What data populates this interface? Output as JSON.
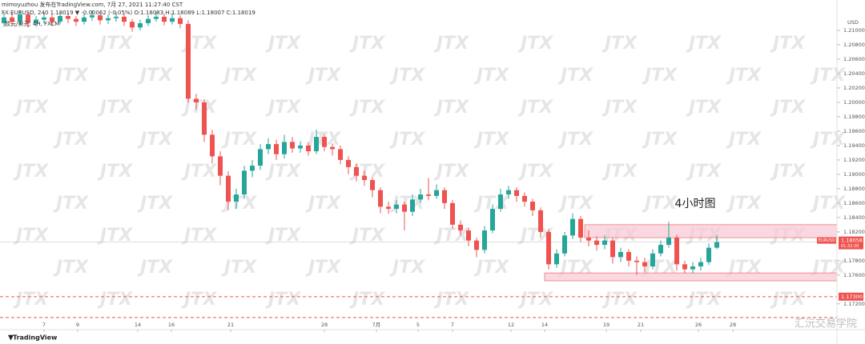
{
  "chart_data": {
    "type": "candlestick",
    "header": [
      "mimoyuzhou 发布在TradingView.com, 7月 27, 2021 11:27:40 CST",
      "FX:EURUSD, 240 1.18019 ▼ -0.00062 (-0.05%) O:1.18083 H:1.18089 L:1.18007 C:1.18019",
      "欧元/美元, 4H, FXCM"
    ],
    "annotation": "4小时图",
    "watermark": "JTX",
    "brand": "TradingView",
    "credit": "汇沅交易学院",
    "y_unit": "USD",
    "up_color": "#26a69a",
    "down_color": "#ef5350",
    "xlim": [
      -0.5,
      104
    ],
    "xticks": [
      {
        "value": 5,
        "label": "7"
      },
      {
        "value": 9.2,
        "label": "9"
      },
      {
        "value": 16.7,
        "label": "14"
      },
      {
        "value": 20.9,
        "label": "16"
      },
      {
        "value": 28.3,
        "label": "21"
      },
      {
        "value": 40,
        "label": "28"
      },
      {
        "value": 46.5,
        "label": "7月"
      },
      {
        "value": 51.7,
        "label": "5"
      },
      {
        "value": 56,
        "label": "7"
      },
      {
        "value": 63.3,
        "label": "12"
      },
      {
        "value": 67.5,
        "label": "14"
      },
      {
        "value": 75.2,
        "label": "19"
      },
      {
        "value": 79.5,
        "label": "21"
      },
      {
        "value": 86.7,
        "label": "26"
      },
      {
        "value": 91,
        "label": "28"
      }
    ],
    "ylim": [
      1.1692,
      1.212
    ],
    "yticks": [
      {
        "value": 1.21,
        "label": "1.21000"
      },
      {
        "value": 1.208,
        "label": "1.20800"
      },
      {
        "value": 1.206,
        "label": "1.20600"
      },
      {
        "value": 1.204,
        "label": "1.20400"
      },
      {
        "value": 1.202,
        "label": "1.20200"
      },
      {
        "value": 1.2,
        "label": "1.20000"
      },
      {
        "value": 1.198,
        "label": "1.19800"
      },
      {
        "value": 1.196,
        "label": "1.19600"
      },
      {
        "value": 1.194,
        "label": "1.19400"
      },
      {
        "value": 1.192,
        "label": "1.19200"
      },
      {
        "value": 1.19,
        "label": "1.19000"
      },
      {
        "value": 1.188,
        "label": "1.18800"
      },
      {
        "value": 1.186,
        "label": "1.18600"
      },
      {
        "value": 1.184,
        "label": "1.18400"
      },
      {
        "value": 1.182,
        "label": "1.18200"
      },
      {
        "value": 1.178,
        "label": "1.17800"
      },
      {
        "value": 1.176,
        "label": "1.17600"
      },
      {
        "value": 1.172,
        "label": "1.17200"
      }
    ],
    "price": {
      "symbol": "EURUSD",
      "value": 1.18058,
      "countdown": "01:32:20"
    },
    "zones": [
      {
        "from": 72.5,
        "to": 104,
        "top": 1.183,
        "bottom": 1.1812,
        "color": "#f8c8d4"
      },
      {
        "from": 67.5,
        "to": 104,
        "top": 1.1763,
        "bottom": 1.1752,
        "color": "#f8c8d4"
      }
    ],
    "hlines": [
      {
        "value": 1.173,
        "label": "1.17300",
        "color": "#ef5350"
      },
      {
        "value": 1.1701,
        "color": "#ef5350"
      }
    ],
    "candles": [
      [
        1.211,
        1.2125,
        1.2105,
        1.2118
      ],
      [
        1.2118,
        1.2124,
        1.2106,
        1.2112
      ],
      [
        1.2112,
        1.2128,
        1.2108,
        1.2122
      ],
      [
        1.2122,
        1.2126,
        1.2104,
        1.211
      ],
      [
        1.211,
        1.212,
        1.2105,
        1.2115
      ],
      [
        1.2115,
        1.2124,
        1.211,
        1.2118
      ],
      [
        1.2118,
        1.2122,
        1.2106,
        1.2112
      ],
      [
        1.2112,
        1.2126,
        1.2108,
        1.212
      ],
      [
        1.212,
        1.2125,
        1.211,
        1.2116
      ],
      [
        1.2116,
        1.212,
        1.2106,
        1.2112
      ],
      [
        1.2112,
        1.2124,
        1.2108,
        1.2118
      ],
      [
        1.2118,
        1.2128,
        1.2113,
        1.2121
      ],
      [
        1.2121,
        1.2125,
        1.2108,
        1.2114
      ],
      [
        1.2114,
        1.2122,
        1.2109,
        1.2117
      ],
      [
        1.2117,
        1.2126,
        1.2112,
        1.2119
      ],
      [
        1.2119,
        1.2123,
        1.2106,
        1.2112
      ],
      [
        1.2112,
        1.2116,
        1.2098,
        1.2104
      ],
      [
        1.2104,
        1.2115,
        1.21,
        1.211
      ],
      [
        1.211,
        1.2121,
        1.2106,
        1.2116
      ],
      [
        1.2116,
        1.2126,
        1.2112,
        1.2119
      ],
      [
        1.2119,
        1.2123,
        1.2107,
        1.2112
      ],
      [
        1.2112,
        1.2124,
        1.2108,
        1.2117
      ],
      [
        1.2117,
        1.2121,
        1.2103,
        1.2109
      ],
      [
        1.2109,
        1.2114,
        1.2,
        1.2005
      ],
      [
        1.2005,
        1.2012,
        1.199,
        1.2
      ],
      [
        1.2,
        1.2004,
        1.1945,
        1.1955
      ],
      [
        1.1955,
        1.1962,
        1.1915,
        1.1925
      ],
      [
        1.1925,
        1.1932,
        1.1885,
        1.1898
      ],
      [
        1.1898,
        1.1904,
        1.185,
        1.1862
      ],
      [
        1.1862,
        1.188,
        1.1852,
        1.1872
      ],
      [
        1.1872,
        1.1912,
        1.1866,
        1.1905
      ],
      [
        1.1905,
        1.192,
        1.1896,
        1.1912
      ],
      [
        1.1912,
        1.1942,
        1.1906,
        1.1935
      ],
      [
        1.1935,
        1.195,
        1.1928,
        1.1942
      ],
      [
        1.1942,
        1.1948,
        1.192,
        1.1928
      ],
      [
        1.1928,
        1.1955,
        1.1922,
        1.1945
      ],
      [
        1.1945,
        1.1952,
        1.193,
        1.1936
      ],
      [
        1.1936,
        1.1946,
        1.193,
        1.194
      ],
      [
        1.194,
        1.1945,
        1.1926,
        1.1932
      ],
      [
        1.1932,
        1.1962,
        1.1928,
        1.1952
      ],
      [
        1.1952,
        1.1956,
        1.1932,
        1.1938
      ],
      [
        1.1938,
        1.1943,
        1.1926,
        1.1935
      ],
      [
        1.1935,
        1.194,
        1.1914,
        1.192
      ],
      [
        1.192,
        1.1925,
        1.19,
        1.191
      ],
      [
        1.191,
        1.1915,
        1.189,
        1.1898
      ],
      [
        1.1898,
        1.1905,
        1.1884,
        1.1892
      ],
      [
        1.1892,
        1.1896,
        1.1868,
        1.1878
      ],
      [
        1.1878,
        1.1882,
        1.1846,
        1.1855
      ],
      [
        1.1855,
        1.1862,
        1.1845,
        1.1852
      ],
      [
        1.1852,
        1.1864,
        1.1846,
        1.1858
      ],
      [
        1.1858,
        1.1862,
        1.1822,
        1.1848
      ],
      [
        1.1848,
        1.1872,
        1.1842,
        1.1865
      ],
      [
        1.1865,
        1.188,
        1.186,
        1.1872
      ],
      [
        1.1872,
        1.1895,
        1.1864,
        1.187
      ],
      [
        1.187,
        1.1886,
        1.1866,
        1.1878
      ],
      [
        1.1878,
        1.1882,
        1.1852,
        1.186
      ],
      [
        1.186,
        1.1864,
        1.1824,
        1.183
      ],
      [
        1.183,
        1.1836,
        1.1815,
        1.1822
      ],
      [
        1.1822,
        1.1826,
        1.18,
        1.1808
      ],
      [
        1.1808,
        1.1812,
        1.1785,
        1.1795
      ],
      [
        1.1795,
        1.1828,
        1.179,
        1.1822
      ],
      [
        1.1822,
        1.1858,
        1.1818,
        1.1852
      ],
      [
        1.1852,
        1.188,
        1.1848,
        1.1872
      ],
      [
        1.1872,
        1.1884,
        1.1866,
        1.1878
      ],
      [
        1.1878,
        1.1882,
        1.1862,
        1.187
      ],
      [
        1.187,
        1.1875,
        1.1855,
        1.1862
      ],
      [
        1.1862,
        1.1866,
        1.1842,
        1.185
      ],
      [
        1.185,
        1.1854,
        1.1812,
        1.182
      ],
      [
        1.182,
        1.1824,
        1.1768,
        1.1775
      ],
      [
        1.1775,
        1.1796,
        1.177,
        1.179
      ],
      [
        1.179,
        1.182,
        1.1786,
        1.1815
      ],
      [
        1.1815,
        1.1846,
        1.181,
        1.1838
      ],
      [
        1.1838,
        1.1842,
        1.1806,
        1.1812
      ],
      [
        1.1812,
        1.1822,
        1.18,
        1.1808
      ],
      [
        1.1808,
        1.1814,
        1.1794,
        1.1802
      ],
      [
        1.1802,
        1.1815,
        1.1796,
        1.1808
      ],
      [
        1.1808,
        1.1812,
        1.1776,
        1.1785
      ],
      [
        1.1785,
        1.1798,
        1.1778,
        1.1792
      ],
      [
        1.1792,
        1.1796,
        1.1772,
        1.178
      ],
      [
        1.178,
        1.1786,
        1.176,
        1.1778
      ],
      [
        1.1778,
        1.1784,
        1.1764,
        1.1772
      ],
      [
        1.1772,
        1.1796,
        1.1768,
        1.179
      ],
      [
        1.179,
        1.1808,
        1.1786,
        1.1802
      ],
      [
        1.1802,
        1.1834,
        1.1798,
        1.1812
      ],
      [
        1.1812,
        1.1816,
        1.1766,
        1.1775
      ],
      [
        1.1775,
        1.178,
        1.1762,
        1.1768
      ],
      [
        1.1768,
        1.1778,
        1.1762,
        1.1772
      ],
      [
        1.1772,
        1.1784,
        1.1766,
        1.1778
      ],
      [
        1.1778,
        1.1804,
        1.1774,
        1.1798
      ],
      [
        1.1798,
        1.1816,
        1.1796,
        1.1806
      ]
    ]
  }
}
